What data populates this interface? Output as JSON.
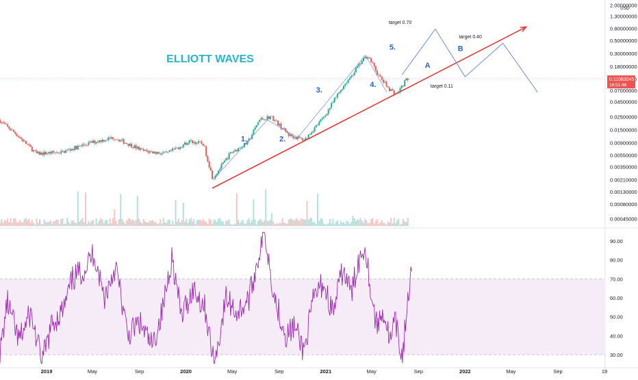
{
  "chart_data": [
    {
      "type": "candlestick",
      "title": "ELLIOTT WAVES",
      "currency": "USD",
      "scale": "log",
      "ylim": [
        0.00034,
        2.2
      ],
      "y_ticks": [
        "2.00000000",
        "1.30000000",
        "0.80000000",
        "0.50000000",
        "0.30000000",
        "0.18000000",
        "0.11000000",
        "0.07000000",
        "0.04500000",
        "0.02500000",
        "0.01500000",
        "0.00900000",
        "0.00550000",
        "0.00350000",
        "0.00210000",
        "0.00130000",
        "0.00080000",
        "0.00045000"
      ],
      "last_price": {
        "value": "0.11063045",
        "countdown": "16:51:46",
        "color": "#ef5350"
      },
      "x_ticks": [
        "2019",
        "May",
        "Sep",
        "2020",
        "May",
        "Sep",
        "2021",
        "May",
        "Sep",
        "2022",
        "May",
        "Sep",
        "19"
      ],
      "price_path": [
        {
          "date": "2018-09-01",
          "value": 0.022
        },
        {
          "date": "2018-10-15",
          "value": 0.013
        },
        {
          "date": "2018-12-10",
          "value": 0.0058
        },
        {
          "date": "2019-02-15",
          "value": 0.0062
        },
        {
          "date": "2019-05-01",
          "value": 0.009
        },
        {
          "date": "2019-07-01",
          "value": 0.011
        },
        {
          "date": "2019-09-15",
          "value": 0.0065
        },
        {
          "date": "2019-11-15",
          "value": 0.0058
        },
        {
          "date": "2020-01-15",
          "value": 0.0095
        },
        {
          "date": "2020-02-20",
          "value": 0.0085
        },
        {
          "date": "2020-03-15",
          "value": 0.0022
        },
        {
          "date": "2020-05-01",
          "value": 0.006
        },
        {
          "date": "2020-06-15",
          "value": 0.009
        },
        {
          "date": "2020-07-15",
          "value": 0.022
        },
        {
          "date": "2020-08-15",
          "value": 0.025
        },
        {
          "date": "2020-10-01",
          "value": 0.012
        },
        {
          "date": "2020-11-10",
          "value": 0.01
        },
        {
          "date": "2021-01-01",
          "value": 0.025
        },
        {
          "date": "2021-02-15",
          "value": 0.075
        },
        {
          "date": "2021-04-10",
          "value": 0.22
        },
        {
          "date": "2021-04-25",
          "value": 0.28
        },
        {
          "date": "2021-05-25",
          "value": 0.12
        },
        {
          "date": "2021-06-20",
          "value": 0.075
        },
        {
          "date": "2021-07-10",
          "value": 0.06
        },
        {
          "date": "2021-08-05",
          "value": 0.11
        }
      ],
      "annotations": [
        {
          "label": "1.",
          "date": "2020-06-01",
          "value": 0.0095
        },
        {
          "label": "2.",
          "date": "2020-09-10",
          "value": 0.0095
        },
        {
          "label": "3.",
          "date": "2020-12-15",
          "value": 0.065
        },
        {
          "label": "4.",
          "date": "2021-05-05",
          "value": 0.08
        },
        {
          "label": "5.",
          "date": "2021-06-25",
          "value": 0.35
        },
        {
          "label": "A",
          "date": "2021-09-25",
          "value": 0.17
        },
        {
          "label": "B",
          "date": "2021-12-20",
          "value": 0.33
        },
        {
          "label": "target 0.70",
          "date": "2021-07-15",
          "value": 0.95
        },
        {
          "label": "target 0.40",
          "date": "2022-01-15",
          "value": 0.54
        },
        {
          "label": "target 0.11",
          "date": "2021-11-01",
          "value": 0.078
        }
      ],
      "trendline": [
        {
          "date": "2020-03-10",
          "value": 0.0015
        },
        {
          "date": "2022-06-10",
          "value": 0.85
        }
      ],
      "projection": [
        {
          "date": "2021-07-20",
          "value": 0.13
        },
        {
          "date": "2021-10-15",
          "value": 0.78
        },
        {
          "date": "2022-01-01",
          "value": 0.12
        },
        {
          "date": "2022-04-10",
          "value": 0.45
        },
        {
          "date": "2022-07-10",
          "value": 0.065
        }
      ],
      "wave_overlay": [
        {
          "date": "2020-03-15",
          "value": 0.0022
        },
        {
          "date": "2020-08-01",
          "value": 0.022
        },
        {
          "date": "2020-10-20",
          "value": 0.011
        },
        {
          "date": "2021-04-15",
          "value": 0.28
        },
        {
          "date": "2021-06-10",
          "value": 0.065
        }
      ],
      "colors": {
        "trendline": "#e53935",
        "projection": "#5b7fe0",
        "title": "#26b6c9",
        "labels": "#2a5fd6",
        "up": "#26a69a",
        "down": "#ef5350"
      }
    },
    {
      "type": "line",
      "ylim": [
        25,
        95
      ],
      "y_ticks": [
        "90.00",
        "80.00",
        "70.00",
        "60.00",
        "50.00",
        "40.00",
        "30.00"
      ],
      "band": [
        30,
        70
      ],
      "rsi_path": [
        {
          "date": "2018-09-01",
          "value": 30
        },
        {
          "date": "2018-09-20",
          "value": 58
        },
        {
          "date": "2018-10-20",
          "value": 37
        },
        {
          "date": "2018-11-20",
          "value": 52
        },
        {
          "date": "2018-12-20",
          "value": 26
        },
        {
          "date": "2019-01-15",
          "value": 46
        },
        {
          "date": "2019-02-15",
          "value": 54
        },
        {
          "date": "2019-03-10",
          "value": 70
        },
        {
          "date": "2019-04-10",
          "value": 75
        },
        {
          "date": "2019-05-05",
          "value": 84
        },
        {
          "date": "2019-06-01",
          "value": 60
        },
        {
          "date": "2019-07-01",
          "value": 77
        },
        {
          "date": "2019-08-01",
          "value": 40
        },
        {
          "date": "2019-09-01",
          "value": 47
        },
        {
          "date": "2019-10-05",
          "value": 34
        },
        {
          "date": "2019-11-01",
          "value": 54
        },
        {
          "date": "2019-11-25",
          "value": 82
        },
        {
          "date": "2019-12-20",
          "value": 50
        },
        {
          "date": "2020-01-20",
          "value": 65
        },
        {
          "date": "2020-02-20",
          "value": 55
        },
        {
          "date": "2020-03-15",
          "value": 24
        },
        {
          "date": "2020-04-15",
          "value": 60
        },
        {
          "date": "2020-05-15",
          "value": 52
        },
        {
          "date": "2020-06-15",
          "value": 60
        },
        {
          "date": "2020-07-10",
          "value": 83
        },
        {
          "date": "2020-07-25",
          "value": 95
        },
        {
          "date": "2020-08-20",
          "value": 60
        },
        {
          "date": "2020-09-20",
          "value": 40
        },
        {
          "date": "2020-10-10",
          "value": 45
        },
        {
          "date": "2020-11-05",
          "value": 32
        },
        {
          "date": "2020-12-01",
          "value": 60
        },
        {
          "date": "2020-12-25",
          "value": 68
        },
        {
          "date": "2021-01-20",
          "value": 52
        },
        {
          "date": "2021-02-15",
          "value": 75
        },
        {
          "date": "2021-03-10",
          "value": 62
        },
        {
          "date": "2021-03-25",
          "value": 78
        },
        {
          "date": "2021-04-15",
          "value": 88
        },
        {
          "date": "2021-05-01",
          "value": 60
        },
        {
          "date": "2021-05-15",
          "value": 45
        },
        {
          "date": "2021-06-01",
          "value": 53
        },
        {
          "date": "2021-06-20",
          "value": 36
        },
        {
          "date": "2021-07-01",
          "value": 48
        },
        {
          "date": "2021-07-20",
          "value": 28
        },
        {
          "date": "2021-08-05",
          "value": 60
        },
        {
          "date": "2021-08-15",
          "value": 74
        }
      ],
      "colors": {
        "line": "#9c27b0",
        "band_fill": "rgba(156,39,176,0.09)"
      }
    }
  ]
}
